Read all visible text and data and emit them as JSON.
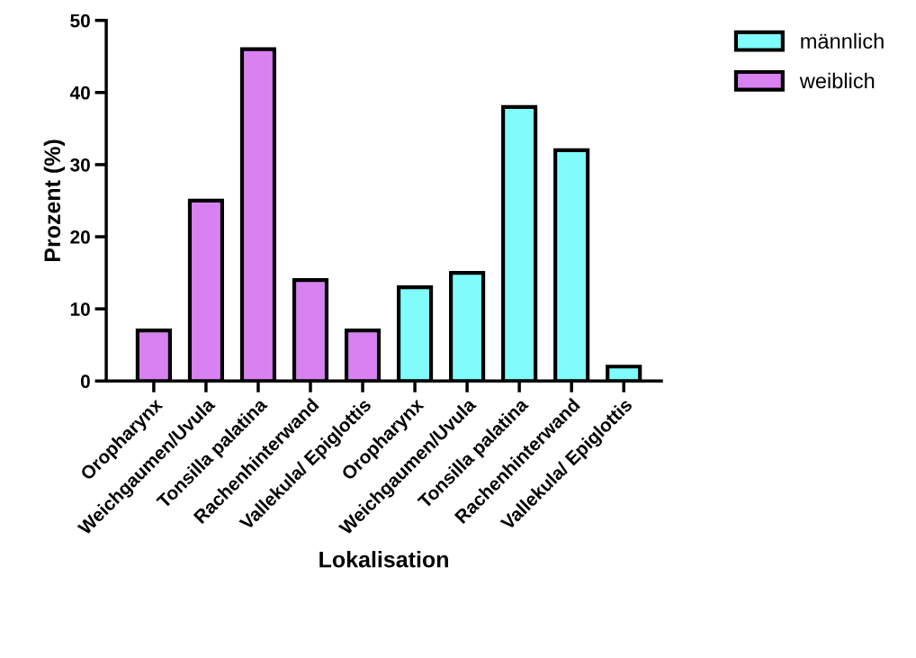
{
  "chart_data": {
    "type": "bar",
    "xlabel": "Lokalisation",
    "ylabel": "Prozent (%)",
    "categories": [
      "Oropharynx",
      "Weichgaumen/Uvula",
      "Tonsilla palatina",
      "Rachenhinterwand",
      "Vallekula/ Epiglottis",
      "Oropharynx",
      "Weichgaumen/Uvula",
      "Tonsilla palatina",
      "Rachenhinterwand",
      "Vallekula/ Epiglottis"
    ],
    "series": [
      {
        "name": "männlich",
        "color": "#80fcfc",
        "values": [
          null,
          null,
          null,
          null,
          null,
          13,
          15,
          38,
          32,
          2
        ]
      },
      {
        "name": "weiblich",
        "color": "#d882f2",
        "values": [
          7,
          25,
          46,
          14,
          7,
          null,
          null,
          null,
          null,
          null
        ]
      }
    ],
    "ylim": [
      0,
      50
    ],
    "yticks": [
      0,
      10,
      20,
      30,
      40,
      50
    ],
    "grid": false,
    "legend": "top right"
  }
}
